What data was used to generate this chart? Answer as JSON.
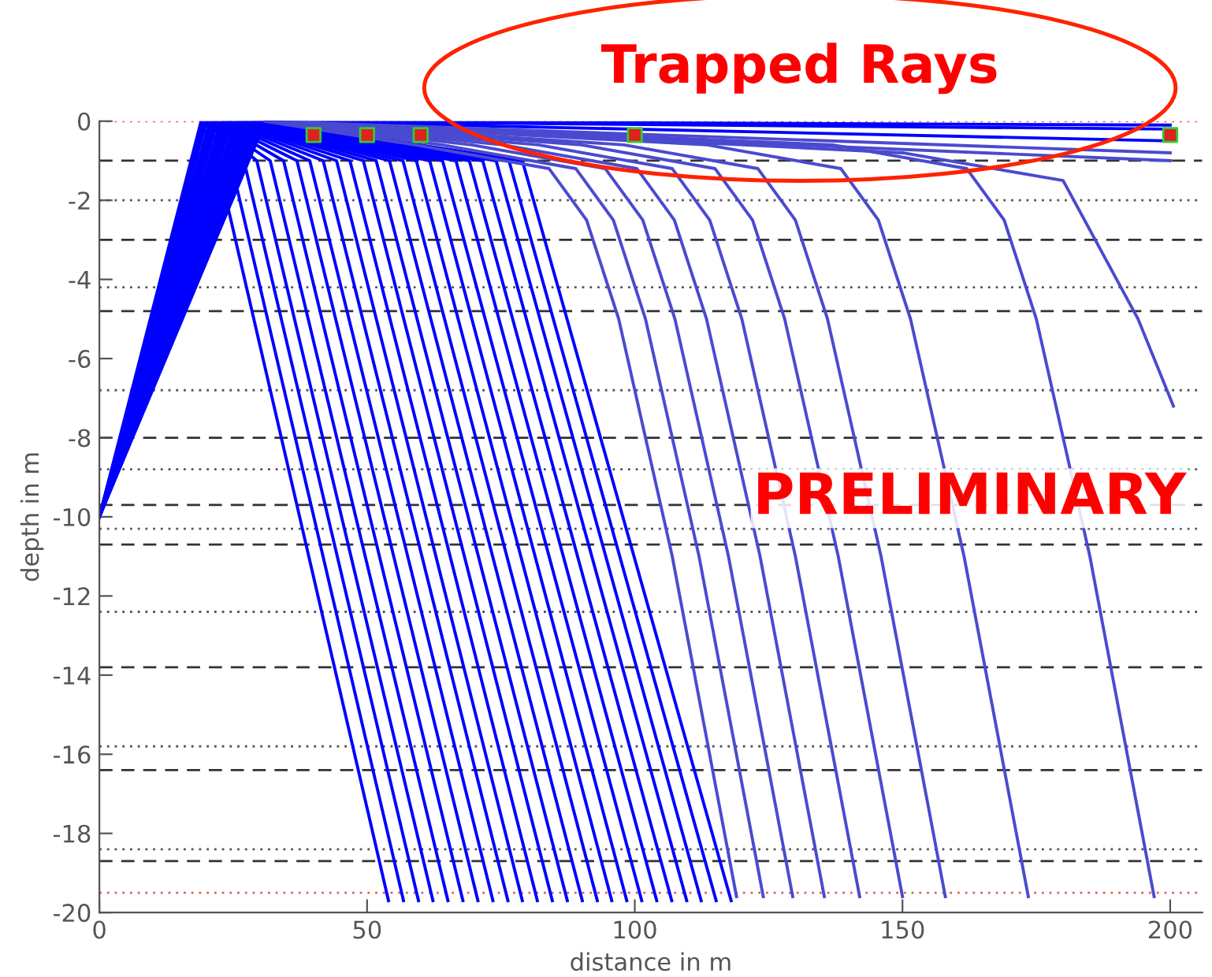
{
  "chart_data": {
    "type": "line",
    "xlabel": "distance in m",
    "ylabel": "depth in m",
    "xlim": [
      0,
      206
    ],
    "ylim": [
      -20,
      0
    ],
    "xticks": [
      0,
      50,
      100,
      150,
      200
    ],
    "yticks": [
      -20,
      -18,
      -16,
      -14,
      -12,
      -10,
      -8,
      -6,
      -4,
      -2,
      0
    ],
    "grid": false,
    "legend": false,
    "line_style": "solid",
    "annotations": [
      "Trapped Rays",
      "PRELIMINARY"
    ],
    "ref_lines": [
      {
        "axis": "y",
        "value": 0,
        "color": "#e06060",
        "line_style": "dotted"
      },
      {
        "axis": "y",
        "value": -1,
        "color": "#333333",
        "line_style": "dashed"
      },
      {
        "axis": "y",
        "value": -2,
        "color": "#555555",
        "line_style": "dotted"
      },
      {
        "axis": "y",
        "value": -3,
        "color": "#333333",
        "line_style": "dashed"
      },
      {
        "axis": "y",
        "value": -4.2,
        "color": "#555555",
        "line_style": "dotted"
      },
      {
        "axis": "y",
        "value": -4.8,
        "color": "#333333",
        "line_style": "dashed"
      },
      {
        "axis": "y",
        "value": -6.8,
        "color": "#555555",
        "line_style": "dotted"
      },
      {
        "axis": "y",
        "value": -8,
        "color": "#333333",
        "line_style": "dashed"
      },
      {
        "axis": "y",
        "value": -8.8,
        "color": "#555555",
        "line_style": "dotted"
      },
      {
        "axis": "y",
        "value": -9.7,
        "color": "#333333",
        "line_style": "dashed"
      },
      {
        "axis": "y",
        "value": -10.3,
        "color": "#555555",
        "line_style": "dotted"
      },
      {
        "axis": "y",
        "value": -10.7,
        "color": "#333333",
        "line_style": "dashed"
      },
      {
        "axis": "y",
        "value": -12.4,
        "color": "#555555",
        "line_style": "dotted"
      },
      {
        "axis": "y",
        "value": -13.8,
        "color": "#333333",
        "line_style": "dashed"
      },
      {
        "axis": "y",
        "value": -15.8,
        "color": "#555555",
        "line_style": "dotted"
      },
      {
        "axis": "y",
        "value": -16.4,
        "color": "#333333",
        "line_style": "dashed"
      },
      {
        "axis": "y",
        "value": -18.4,
        "color": "#555555",
        "line_style": "dotted"
      },
      {
        "axis": "y",
        "value": -18.7,
        "color": "#333333",
        "line_style": "dashed"
      },
      {
        "axis": "y",
        "value": -19.5,
        "color": "#e06060",
        "line_style": "dotted"
      }
    ],
    "series": [
      {
        "color": "#0000ff",
        "x": [
          0,
          19,
          22,
          54
        ],
        "values": [
          -10,
          0,
          -1,
          -19.7
        ]
      },
      {
        "color": "#0000ff",
        "x": [
          0,
          19.5,
          24.5,
          56.8
        ],
        "values": [
          -10,
          0,
          -1,
          -19.7
        ]
      },
      {
        "color": "#0000ff",
        "x": [
          0,
          20,
          27,
          59.6
        ],
        "values": [
          -10,
          0,
          -1,
          -19.7
        ]
      },
      {
        "color": "#0000ff",
        "x": [
          0,
          20.6,
          29.4,
          62.3
        ],
        "values": [
          -10,
          0,
          -1,
          -19.7
        ]
      },
      {
        "color": "#0000ff",
        "x": [
          0,
          21.1,
          31.9,
          65.1
        ],
        "values": [
          -10,
          0,
          -1,
          -19.7
        ]
      },
      {
        "color": "#0000ff",
        "x": [
          0,
          21.6,
          34.4,
          67.9
        ],
        "values": [
          -10,
          0,
          -1,
          -19.7
        ]
      },
      {
        "color": "#0000ff",
        "x": [
          0,
          22.1,
          36.9,
          70.7
        ],
        "values": [
          -10,
          0,
          -1,
          -19.7
        ]
      },
      {
        "color": "#0000ff",
        "x": [
          0,
          22.7,
          39.3,
          73.5
        ],
        "values": [
          -10,
          0,
          -1,
          -19.7
        ]
      },
      {
        "color": "#0000ff",
        "x": [
          0,
          23.2,
          41.8,
          76.3
        ],
        "values": [
          -10,
          0,
          -1,
          -19.7
        ]
      },
      {
        "color": "#0000ff",
        "x": [
          0,
          23.7,
          44.3,
          79
        ],
        "values": [
          -10,
          0,
          -1,
          -19.7
        ]
      },
      {
        "color": "#0000ff",
        "x": [
          0,
          24.2,
          46.8,
          81.8
        ],
        "values": [
          -10,
          0,
          -1,
          -19.7
        ]
      },
      {
        "color": "#0000ff",
        "x": [
          0,
          24.7,
          49.3,
          84.6
        ],
        "values": [
          -10,
          0,
          -1,
          -19.7
        ]
      },
      {
        "color": "#0000ff",
        "x": [
          0,
          25.3,
          51.7,
          87.4
        ],
        "values": [
          -10,
          0,
          -1,
          -19.7
        ]
      },
      {
        "color": "#0000ff",
        "x": [
          0,
          25.8,
          54.2,
          90.2
        ],
        "values": [
          -10,
          0,
          -1,
          -19.7
        ]
      },
      {
        "color": "#0000ff",
        "x": [
          0,
          26.3,
          56.7,
          93
        ],
        "values": [
          -10,
          0,
          -1,
          -19.7
        ]
      },
      {
        "color": "#0000ff",
        "x": [
          0,
          26.8,
          59.2,
          95.7
        ],
        "values": [
          -10,
          0,
          -1,
          -19.7
        ]
      },
      {
        "color": "#0000ff",
        "x": [
          0,
          27.3,
          61.7,
          98.5
        ],
        "values": [
          -10,
          0,
          -1,
          -19.7
        ]
      },
      {
        "color": "#0000ff",
        "x": [
          0,
          27.9,
          64.1,
          101.3
        ],
        "values": [
          -10,
          0,
          -1,
          -19.7
        ]
      },
      {
        "color": "#0000ff",
        "x": [
          0,
          28.4,
          66.6,
          104.1
        ],
        "values": [
          -10,
          0,
          -1,
          -19.7
        ]
      },
      {
        "color": "#0000ff",
        "x": [
          0,
          28.9,
          69.1,
          106.9
        ],
        "values": [
          -10,
          0,
          -1,
          -19.7
        ]
      },
      {
        "color": "#0000ff",
        "x": [
          0,
          29.4,
          71.6,
          109.7
        ],
        "values": [
          -10,
          0,
          -1,
          -19.7
        ]
      },
      {
        "color": "#0000ff",
        "x": [
          0,
          29.9,
          74.1,
          112.4
        ],
        "values": [
          -10,
          0,
          -1,
          -19.7
        ]
      },
      {
        "color": "#0000ff",
        "x": [
          0,
          30.5,
          76.5,
          115.2
        ],
        "values": [
          -10,
          0,
          -1,
          -19.7
        ]
      },
      {
        "color": "#0000ff",
        "x": [
          0,
          31,
          79,
          118
        ],
        "values": [
          -10,
          0,
          -1,
          -19.7
        ]
      },
      {
        "color": "#4a4ad0",
        "x": [
          31,
          59,
          84,
          91,
          97,
          107,
          119
        ],
        "values": [
          0,
          -0.6,
          -1.2,
          -2.5,
          -5,
          -11,
          -19.6
        ]
      },
      {
        "color": "#4a4ad0",
        "x": [
          31,
          64,
          89,
          96,
          102,
          112,
          124
        ],
        "values": [
          0,
          -0.6,
          -1.2,
          -2.5,
          -5,
          -11,
          -19.6
        ]
      },
      {
        "color": "#4a4ad0",
        "x": [
          31,
          69.5,
          94.5,
          101.5,
          107.5,
          117.5,
          129.5
        ],
        "values": [
          0,
          -0.6,
          -1.2,
          -2.5,
          -5,
          -11,
          -19.6
        ]
      },
      {
        "color": "#4a4ad0",
        "x": [
          31,
          75.4,
          100.4,
          107.4,
          113.4,
          123.4,
          135.4
        ],
        "values": [
          0,
          -0.6,
          -1.2,
          -2.5,
          -5,
          -11,
          -19.6
        ]
      },
      {
        "color": "#4a4ad0",
        "x": [
          31,
          82,
          107,
          114,
          120,
          130,
          142
        ],
        "values": [
          0,
          -0.6,
          -1.2,
          -2.5,
          -5,
          -11,
          -19.6
        ]
      },
      {
        "color": "#4a4ad0",
        "x": [
          31,
          90,
          115,
          122,
          128,
          138,
          150
        ],
        "values": [
          0,
          -0.6,
          -1.2,
          -2.5,
          -5,
          -11,
          -19.6
        ]
      },
      {
        "color": "#4a4ad0",
        "x": [
          31,
          98,
          123,
          130,
          136,
          146,
          158
        ],
        "values": [
          0,
          -0.6,
          -1.2,
          -2.5,
          -5,
          -11,
          -19.6
        ]
      },
      {
        "color": "#4a4ad0",
        "x": [
          31,
          113.5,
          138.5,
          145.5,
          151.5,
          161.5,
          173.5
        ],
        "values": [
          0,
          -0.6,
          -1.2,
          -2.5,
          -5,
          -11,
          -19.6
        ]
      },
      {
        "color": "#4a4ad0",
        "x": [
          31,
          137,
          162,
          169,
          175,
          185,
          197
        ],
        "values": [
          0,
          -0.6,
          -1.2,
          -2.5,
          -5,
          -11,
          -19.6
        ]
      },
      {
        "color": "#4a4ad0",
        "x": [
          31,
          150,
          180,
          186,
          194,
          200.6
        ],
        "values": [
          0,
          -0.8,
          -1.5,
          -3,
          -5,
          -7.2
        ]
      },
      {
        "color": "#0000ff",
        "x": [
          31,
          200
        ],
        "values": [
          0,
          -0.1
        ]
      },
      {
        "color": "#0000ff",
        "x": [
          31,
          200
        ],
        "values": [
          0,
          -0.2
        ]
      },
      {
        "color": "#0000ff",
        "x": [
          31,
          200
        ],
        "values": [
          0,
          -0.5
        ]
      },
      {
        "color": "#4a4ad0",
        "x": [
          31,
          200
        ],
        "values": [
          0,
          -0.8
        ]
      },
      {
        "color": "#4a4ad0",
        "x": [
          60,
          200
        ],
        "values": [
          -0.2,
          -1
        ]
      },
      {
        "type": "scatter",
        "marker": "square",
        "color": "#dd2222",
        "x": [
          40,
          50,
          60,
          100,
          200
        ],
        "values": [
          -0.35,
          -0.35,
          -0.35,
          -0.35,
          -0.35
        ]
      }
    ]
  }
}
